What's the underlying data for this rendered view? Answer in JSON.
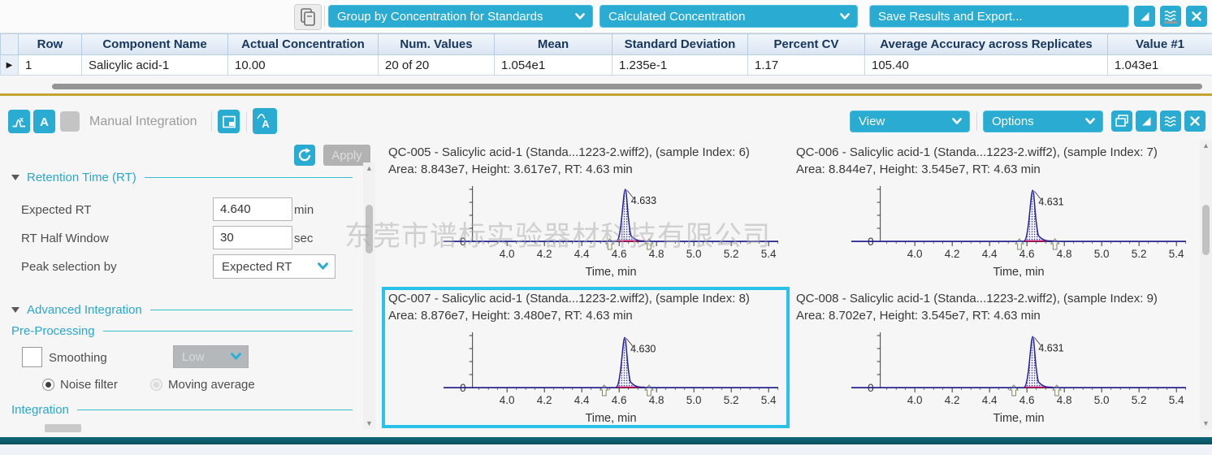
{
  "top_toolbar": {
    "group_by_dropdown": "Group by Concentration for Standards",
    "metric_dropdown": "Calculated Concentration",
    "save_export_button": "Save Results and Export..."
  },
  "results_table": {
    "columns": [
      "Row",
      "Component Name",
      "Actual Concentration",
      "Num. Values",
      "Mean",
      "Standard Deviation",
      "Percent CV",
      "Average Accuracy across Replicates",
      "Value #1"
    ],
    "rows": [
      {
        "row": "1",
        "component_name": "Salicylic acid-1",
        "actual_concentration": "10.00",
        "num_values": "20 of 20",
        "mean": "1.054e1",
        "standard_deviation": "1.235e-1",
        "percent_cv": "1.17",
        "average_accuracy": "105.40",
        "value_1": "1.043e1"
      }
    ],
    "row_marker": "▶"
  },
  "integration_toolbar": {
    "title": "Manual Integration",
    "view_dropdown": "View",
    "options_dropdown": "Options"
  },
  "parameters_panel": {
    "apply_button": "Apply",
    "retention_time": {
      "header": "Retention Time (RT)",
      "expected_rt": {
        "label": "Expected RT",
        "value": "4.640",
        "unit": "min"
      },
      "rt_half_window": {
        "label": "RT Half Window",
        "value": "30",
        "unit": "sec"
      },
      "peak_selection": {
        "label": "Peak selection by",
        "value": "Expected RT"
      }
    },
    "advanced_integration": {
      "header": "Advanced Integration",
      "preprocessing_header": "Pre-Processing",
      "smoothing_label": "Smoothing",
      "smoothing_level": "Low",
      "noise_filter_label": "Noise filter",
      "moving_average_label": "Moving average",
      "integration_header": "Integration"
    }
  },
  "watermark": "东莞市谱标实验器材科技有限公司",
  "colors": {
    "accent_cyan": "#29ABD2",
    "selection_border": "#2AC2E8",
    "trace_navy": "#23239B",
    "peak_base_magenta": "#D4006A",
    "divider_gold": "#C3A42E",
    "bottom_bar_teal": "#0C5B6C",
    "table_header_bg": "#DCE6F2",
    "table_header_text": "#17365D"
  },
  "chart_data": [
    {
      "type": "line",
      "title": "QC-005 - Salicylic acid-1 (Standa...1223-2.wiff2), (sample Index: 6)",
      "subtitle": "Area: 8.843e7, Height: 3.617e7, RT: 4.63 min",
      "area": "8.843e7",
      "height": "3.617e7",
      "rt": "4.63 min",
      "peak_rt": 4.633,
      "peak_label": "4.633",
      "xlabel": "Time, min",
      "x_ticks": [
        4.0,
        4.2,
        4.4,
        4.6,
        4.8,
        5.0,
        5.2,
        5.4
      ],
      "xlim": [
        3.66,
        5.45
      ],
      "y_zero_label": "0",
      "integration_markers": [
        4.55,
        4.76
      ],
      "selected": false
    },
    {
      "type": "line",
      "title": "QC-006 - Salicylic acid-1 (Standa...1223-2.wiff2), (sample Index: 7)",
      "subtitle": "Area: 8.844e7, Height: 3.545e7, RT: 4.63 min",
      "area": "8.844e7",
      "height": "3.545e7",
      "rt": "4.63 min",
      "peak_rt": 4.631,
      "peak_label": "4.631",
      "xlabel": "Time, min",
      "x_ticks": [
        4.0,
        4.2,
        4.4,
        4.6,
        4.8,
        5.0,
        5.2,
        5.4
      ],
      "xlim": [
        3.66,
        5.45
      ],
      "y_zero_label": "0",
      "integration_markers": [
        4.56,
        4.75
      ],
      "selected": false
    },
    {
      "type": "line",
      "title": "QC-007 - Salicylic acid-1 (Standa...1223-2.wiff2), (sample Index: 8)",
      "subtitle": "Area: 8.876e7, Height: 3.480e7, RT: 4.63 min",
      "area": "8.876e7",
      "height": "3.480e7",
      "rt": "4.63 min",
      "peak_rt": 4.63,
      "peak_label": "4.630",
      "xlabel": "Time, min",
      "x_ticks": [
        4.0,
        4.2,
        4.4,
        4.6,
        4.8,
        5.0,
        5.2,
        5.4
      ],
      "xlim": [
        3.66,
        5.45
      ],
      "y_zero_label": "0",
      "integration_markers": [
        4.52,
        4.76
      ],
      "selected": true
    },
    {
      "type": "line",
      "title": "QC-008 - Salicylic acid-1 (Standa...1223-2.wiff2), (sample Index: 9)",
      "subtitle": "Area: 8.702e7, Height: 3.545e7, RT: 4.63 min",
      "area": "8.702e7",
      "height": "3.545e7",
      "rt": "4.63 min",
      "peak_rt": 4.631,
      "peak_label": "4.631",
      "xlabel": "Time, min",
      "x_ticks": [
        4.0,
        4.2,
        4.4,
        4.6,
        4.8,
        5.0,
        5.2,
        5.4
      ],
      "xlim": [
        3.66,
        5.45
      ],
      "y_zero_label": "0",
      "integration_markers": [
        4.53,
        4.76
      ],
      "selected": false
    }
  ]
}
